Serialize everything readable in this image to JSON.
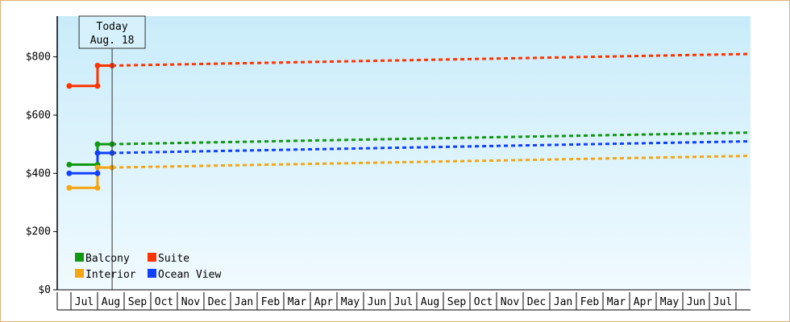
{
  "chart_data": {
    "type": "line",
    "grid": false,
    "legend_placement": "bottom-left",
    "y_ticks": [
      0,
      200,
      400,
      600,
      800
    ],
    "y_tick_labels": [
      "$0",
      "$200",
      "$400",
      "$600",
      "$800"
    ],
    "ylim": [
      0,
      940
    ],
    "x_months": [
      "Jul",
      "Aug",
      "Sep",
      "Oct",
      "Nov",
      "Dec",
      "Jan",
      "Feb",
      "Mar",
      "Apr",
      "May",
      "Jun",
      "Jul",
      "Aug",
      "Sep",
      "Oct",
      "Nov",
      "Dec",
      "Jan",
      "Feb",
      "Mar",
      "Apr",
      "May",
      "Jun",
      "Jul"
    ],
    "today": {
      "label_line1": "Today",
      "label_line2": "Aug. 18",
      "date": "Aug 18"
    },
    "series": [
      {
        "name": "Balcony",
        "color": "#109910",
        "history": [
          [
            "Jun 30",
            430
          ],
          [
            "Aug 1",
            430
          ],
          [
            "Aug 1",
            500
          ],
          [
            "Aug 18",
            500
          ]
        ],
        "forecast_end": 540
      },
      {
        "name": "Suite",
        "color": "#ff3300",
        "history": [
          [
            "Jun 30",
            700
          ],
          [
            "Aug 1",
            700
          ],
          [
            "Aug 1",
            770
          ],
          [
            "Aug 18",
            770
          ]
        ],
        "forecast_end": 810
      },
      {
        "name": "Interior",
        "color": "#f5a511",
        "history": [
          [
            "Jun 30",
            350
          ],
          [
            "Aug 1",
            350
          ],
          [
            "Aug 1",
            420
          ],
          [
            "Aug 18",
            420
          ]
        ],
        "forecast_end": 460
      },
      {
        "name": "Ocean View",
        "color": "#1040ff",
        "history": [
          [
            "Jun 30",
            400
          ],
          [
            "Aug 1",
            400
          ],
          [
            "Aug 1",
            470
          ],
          [
            "Aug 18",
            470
          ]
        ],
        "forecast_end": 510
      }
    ],
    "forecast_end_date": "Aug 1"
  }
}
